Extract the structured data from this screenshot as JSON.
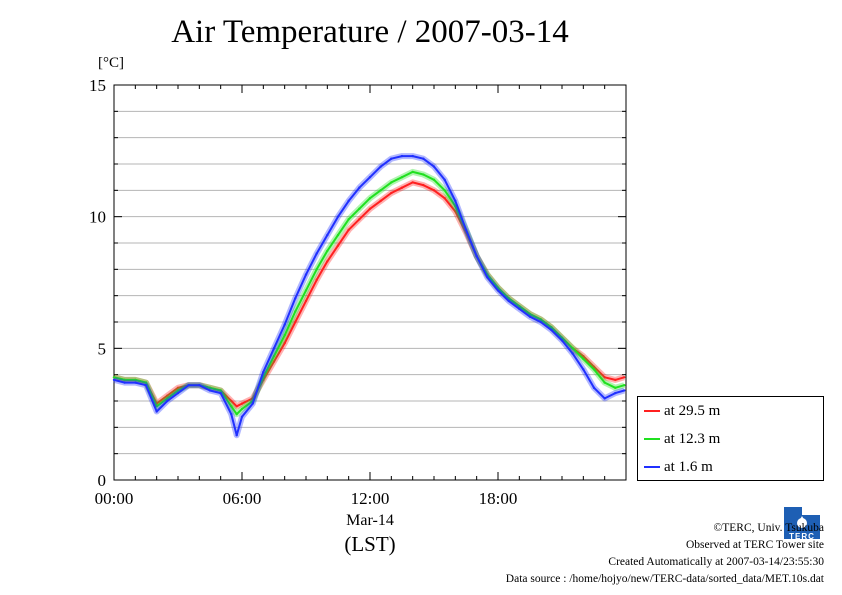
{
  "chart_data": {
    "type": "line",
    "title": "Air Temperature / 2007-03-14",
    "ylabel": "[°C]",
    "xlabel": "(LST)",
    "x_date_label": "Mar-14",
    "ylim": [
      0,
      15
    ],
    "xlim": [
      "00:00",
      "24:00"
    ],
    "yticks": [
      "0",
      "5",
      "10",
      "15"
    ],
    "xticks": [
      "00:00",
      "06:00",
      "12:00",
      "18:00"
    ],
    "grid": true,
    "legend_position": "lower-right outside",
    "x": [
      "00:00",
      "00:30",
      "01:00",
      "01:30",
      "02:00",
      "02:30",
      "03:00",
      "03:30",
      "04:00",
      "04:30",
      "05:00",
      "05:30",
      "05:45",
      "06:00",
      "06:30",
      "07:00",
      "07:30",
      "08:00",
      "08:30",
      "09:00",
      "09:30",
      "10:00",
      "10:30",
      "11:00",
      "11:30",
      "12:00",
      "12:30",
      "13:00",
      "13:30",
      "14:00",
      "14:30",
      "15:00",
      "15:30",
      "16:00",
      "16:30",
      "17:00",
      "17:30",
      "18:00",
      "18:30",
      "19:00",
      "19:30",
      "20:00",
      "20:30",
      "21:00",
      "21:30",
      "22:00",
      "22:30",
      "23:00",
      "23:30",
      "23:55"
    ],
    "series": [
      {
        "name": "at 29.5 m",
        "color": "#ff2020",
        "values": [
          3.9,
          3.8,
          3.8,
          3.7,
          2.9,
          3.2,
          3.5,
          3.6,
          3.6,
          3.5,
          3.4,
          3.0,
          2.8,
          2.9,
          3.1,
          3.8,
          4.5,
          5.2,
          6.0,
          6.8,
          7.6,
          8.3,
          8.9,
          9.5,
          9.9,
          10.3,
          10.6,
          10.9,
          11.1,
          11.3,
          11.2,
          11.0,
          10.7,
          10.2,
          9.4,
          8.5,
          7.8,
          7.3,
          6.9,
          6.6,
          6.3,
          6.1,
          5.8,
          5.4,
          5.0,
          4.7,
          4.3,
          3.9,
          3.8,
          3.9
        ]
      },
      {
        "name": "at 12.3 m",
        "color": "#20e020",
        "values": [
          3.9,
          3.8,
          3.8,
          3.7,
          2.8,
          3.1,
          3.4,
          3.6,
          3.6,
          3.5,
          3.4,
          2.8,
          2.5,
          2.7,
          3.0,
          3.9,
          4.7,
          5.5,
          6.4,
          7.2,
          8.0,
          8.7,
          9.3,
          9.9,
          10.3,
          10.7,
          11.0,
          11.3,
          11.5,
          11.7,
          11.6,
          11.4,
          11.0,
          10.4,
          9.5,
          8.5,
          7.8,
          7.3,
          6.9,
          6.6,
          6.3,
          6.1,
          5.8,
          5.4,
          5.0,
          4.6,
          4.2,
          3.7,
          3.5,
          3.6
        ]
      },
      {
        "name": "at 1.6 m",
        "color": "#2030ff",
        "values": [
          3.8,
          3.7,
          3.7,
          3.6,
          2.6,
          3.0,
          3.3,
          3.6,
          3.6,
          3.4,
          3.3,
          2.5,
          1.7,
          2.4,
          2.9,
          4.1,
          5.0,
          5.9,
          6.9,
          7.8,
          8.6,
          9.3,
          10.0,
          10.6,
          11.1,
          11.5,
          11.9,
          12.2,
          12.3,
          12.3,
          12.2,
          11.9,
          11.4,
          10.6,
          9.5,
          8.5,
          7.7,
          7.2,
          6.8,
          6.5,
          6.2,
          6.0,
          5.7,
          5.3,
          4.8,
          4.2,
          3.5,
          3.1,
          3.3,
          3.4
        ]
      }
    ]
  },
  "credits": {
    "copyright": "©TERC, Univ. Tsukuba",
    "observed": "Observed at TERC Tower site",
    "created": "Created Automatically at 2007-03-14/23:55:30",
    "source": "Data source : /home/hojyo/new/TERC-data/sorted_data/MET.10s.dat"
  },
  "logo": {
    "text": "TERC",
    "color": "#1e5fb4"
  }
}
